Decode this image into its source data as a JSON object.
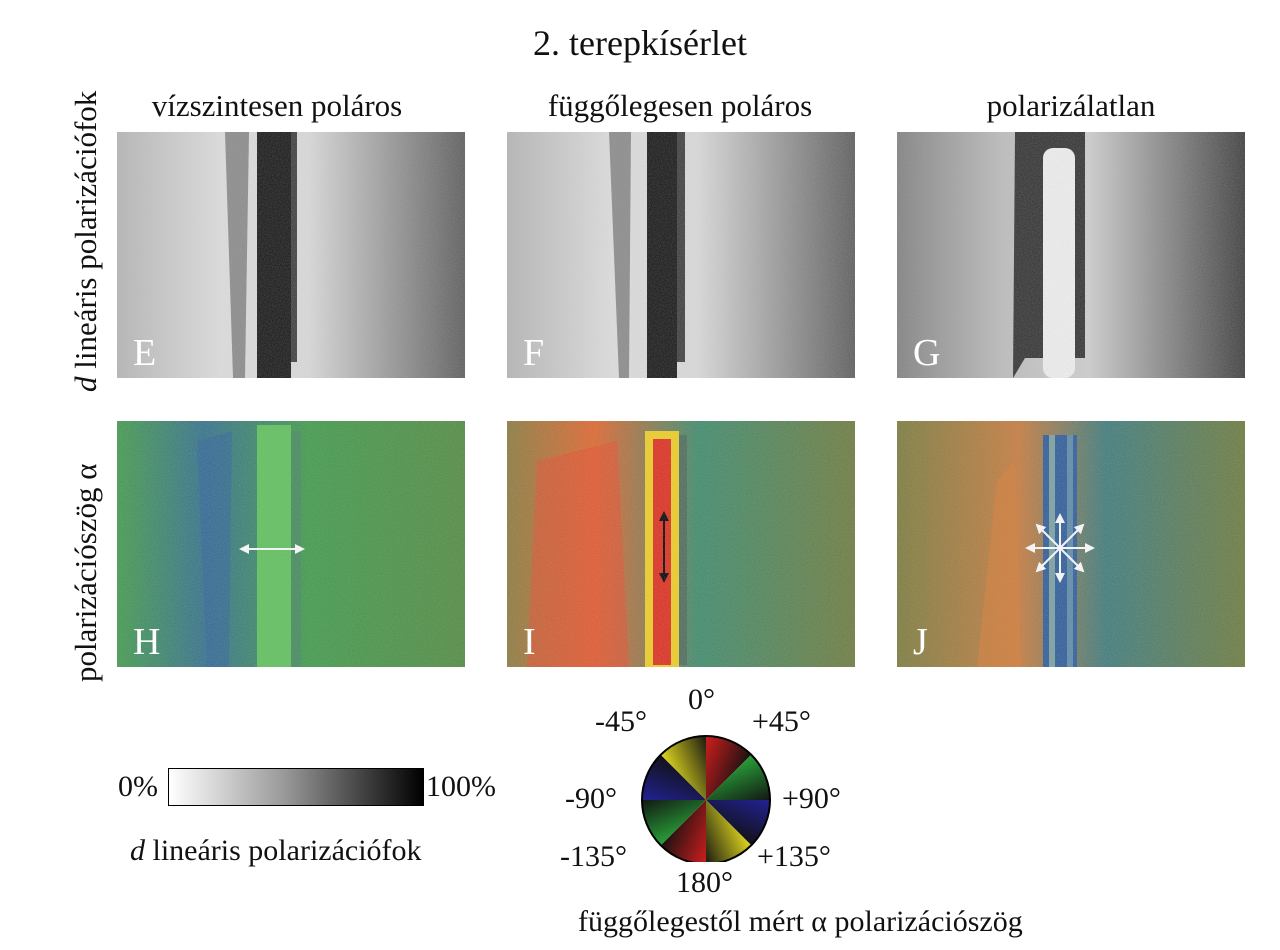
{
  "title": "2. terepkísérlet",
  "column_headers": [
    "vízszintesen poláros",
    "függőlegesen poláros",
    "polarizálatlan"
  ],
  "row_labels": {
    "degree": {
      "italic": "d",
      "text": " lineáris polarizációfok"
    },
    "angle": "polarizációszög α"
  },
  "panel_letters": [
    "E",
    "F",
    "G",
    "H",
    "I",
    "J"
  ],
  "scale_bar": {
    "min_label": "0%",
    "max_label": "100%",
    "caption_italic": "d",
    "caption_text": " lineáris polarizációfok"
  },
  "color_wheel": {
    "labels": {
      "top": "0°",
      "top_left": "-45°",
      "top_right": "+45°",
      "left": "-90°",
      "right": "+90°",
      "bottom_left": "-135°",
      "bottom_right": "+135°",
      "bottom": "180°"
    },
    "caption": "függőlegestől mért α polarizációszög",
    "colors": {
      "red": "#d91e1e",
      "yellow": "#e8e020",
      "green": "#2aa83a",
      "blue": "#22229a"
    }
  }
}
